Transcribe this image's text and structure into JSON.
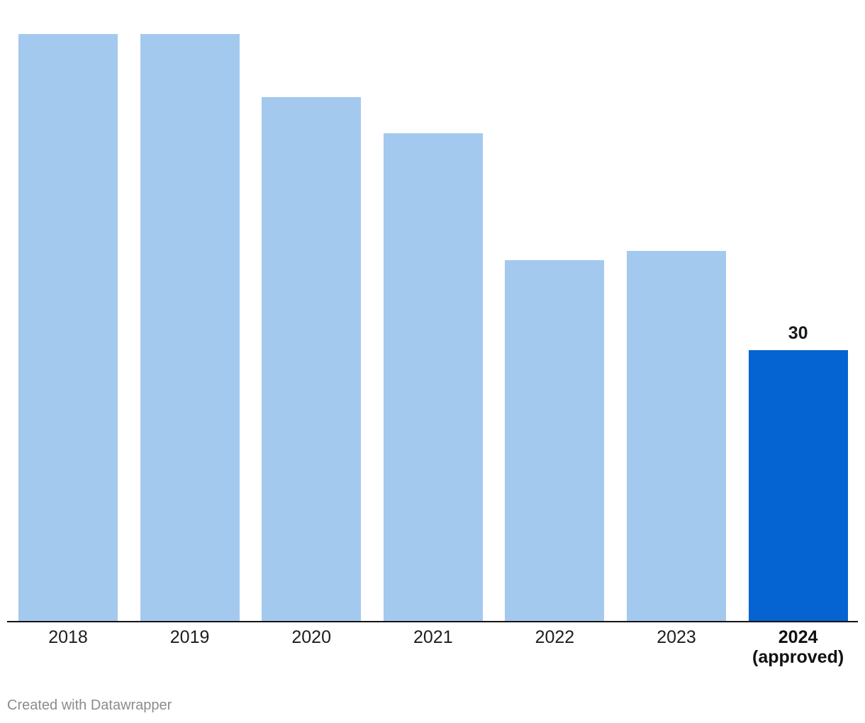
{
  "chart_data": {
    "type": "bar",
    "categories": [
      "2018",
      "2019",
      "2020",
      "2021",
      "2022",
      "2023",
      "2024\n(approved)"
    ],
    "values": [
      65,
      65,
      58,
      54,
      40,
      41,
      30
    ],
    "highlight_index": 6,
    "data_labels": {
      "6": "30"
    },
    "title": "",
    "xlabel": "",
    "ylabel": "",
    "ylim": [
      0,
      65
    ],
    "grid": false,
    "legend": "none",
    "bar_color": "#a4c9ee",
    "highlight_color": "#0564d1",
    "axis_line_color": "#131313",
    "label_color": "#1d1d1d"
  },
  "footer": {
    "credit": "Created with Datawrapper"
  }
}
